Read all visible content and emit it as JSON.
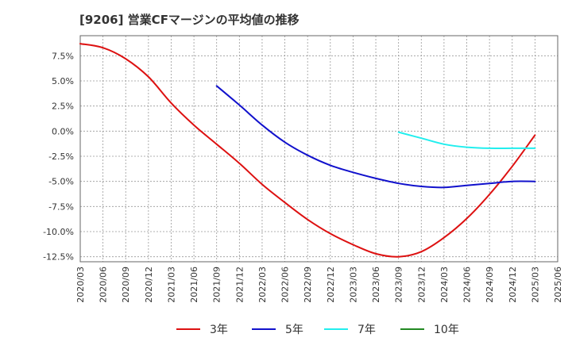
{
  "chart_data": {
    "type": "line",
    "title": "[9206]  営業CFマージンの平均値の推移",
    "xlabel": "",
    "ylabel": "",
    "ylim": [
      -13.0,
      9.5
    ],
    "y_ticks": [
      7.5,
      5.0,
      2.5,
      0.0,
      -2.5,
      -5.0,
      -7.5,
      -10.0,
      -12.5
    ],
    "y_tick_labels": [
      "7.5%",
      "5.0%",
      "2.5%",
      "0.0%",
      "-2.5%",
      "-5.0%",
      "-7.5%",
      "-10.0%",
      "-12.5%"
    ],
    "x_categories": [
      "2020/03",
      "2020/06",
      "2020/09",
      "2020/12",
      "2021/03",
      "2021/06",
      "2021/09",
      "2021/12",
      "2022/03",
      "2022/06",
      "2022/09",
      "2022/12",
      "2023/03",
      "2023/06",
      "2023/09",
      "2023/12",
      "2024/03",
      "2024/06",
      "2024/09",
      "2024/12",
      "2025/03",
      "2025/06"
    ],
    "grid": true,
    "legend_position": "bottom",
    "series": [
      {
        "name": "3年",
        "color": "#dd1111",
        "x": [
          "2020/03",
          "2020/06",
          "2020/09",
          "2020/12",
          "2021/03",
          "2021/06",
          "2021/09",
          "2021/12",
          "2022/03",
          "2022/06",
          "2022/09",
          "2022/12",
          "2023/03",
          "2023/06",
          "2023/09",
          "2023/12",
          "2024/03",
          "2024/06",
          "2024/09",
          "2024/12",
          "2025/03"
        ],
        "values": [
          8.7,
          8.3,
          7.2,
          5.4,
          2.8,
          0.6,
          -1.3,
          -3.2,
          -5.3,
          -7.1,
          -8.8,
          -10.2,
          -11.3,
          -12.2,
          -12.5,
          -12.0,
          -10.6,
          -8.7,
          -6.3,
          -3.5,
          -0.4
        ]
      },
      {
        "name": "5年",
        "color": "#1111cc",
        "x": [
          "2021/09",
          "2021/12",
          "2022/03",
          "2022/06",
          "2022/09",
          "2022/12",
          "2023/03",
          "2023/06",
          "2023/09",
          "2023/12",
          "2024/03",
          "2024/06",
          "2024/09",
          "2024/12",
          "2025/03"
        ],
        "values": [
          4.5,
          2.6,
          0.6,
          -1.1,
          -2.4,
          -3.4,
          -4.1,
          -4.7,
          -5.2,
          -5.5,
          -5.6,
          -5.4,
          -5.2,
          -5.0,
          -5.0
        ]
      },
      {
        "name": "7年",
        "color": "#22eeee",
        "x": [
          "2023/09",
          "2023/12",
          "2024/03",
          "2024/06",
          "2024/09",
          "2024/12",
          "2025/03"
        ],
        "values": [
          -0.1,
          -0.7,
          -1.3,
          -1.6,
          -1.7,
          -1.7,
          -1.7
        ]
      },
      {
        "name": "10年",
        "color": "#228822",
        "x": [],
        "values": []
      }
    ]
  }
}
